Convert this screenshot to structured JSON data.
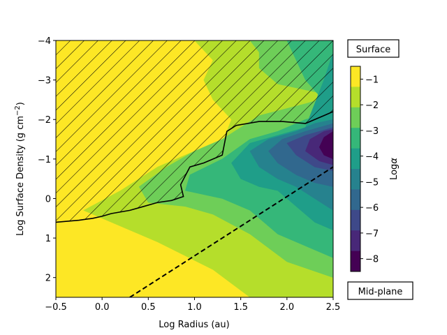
{
  "chart_data": {
    "type": "heatmap",
    "subtype": "filled-contour",
    "title": "",
    "xlabel": "Log Radius (au)",
    "ylabel": "Log Surface Density (g cm",
    "ylabel_exponent": "−2",
    "ylabel_close": ")",
    "xlim": [
      -0.5,
      2.5
    ],
    "ylim": [
      2.5,
      -4
    ],
    "y_axis_inverted": true,
    "x_ticks": [
      "−0.5",
      "0.0",
      "0.5",
      "1.0",
      "1.5",
      "2.0",
      "2.5"
    ],
    "x_tick_values": [
      -0.5,
      0.0,
      0.5,
      1.0,
      1.5,
      2.0,
      2.5
    ],
    "y_ticks": [
      "−4",
      "−3",
      "−2",
      "−1",
      "0",
      "1",
      "2"
    ],
    "y_tick_values": [
      -4,
      -3,
      -2,
      -1,
      0,
      1,
      2
    ],
    "grid": false,
    "colorbar": {
      "label": "Log",
      "label_symbol": "α",
      "ticks": [
        "−1",
        "−2",
        "−3",
        "−4",
        "−5",
        "−6",
        "−7",
        "−8"
      ],
      "tick_values": [
        -1,
        -2,
        -3,
        -4,
        -5,
        -6,
        -7,
        -8
      ],
      "range": [
        -8.5,
        -0.5
      ],
      "level_colors": [
        "#fde725",
        "#b5de2b",
        "#6ece58",
        "#35b779",
        "#1f9e89",
        "#26828e",
        "#31688e",
        "#3e4989",
        "#482878",
        "#440154"
      ]
    },
    "annotations": {
      "top_box": "Surface",
      "bottom_box": "Mid-plane"
    },
    "hatched_region_boundary": [
      [
        -0.5,
        0.6
      ],
      [
        -0.25,
        0.55
      ],
      [
        -0.1,
        0.5
      ],
      [
        0.0,
        0.45
      ],
      [
        0.1,
        0.38
      ],
      [
        0.3,
        0.3
      ],
      [
        0.45,
        0.2
      ],
      [
        0.6,
        0.1
      ],
      [
        0.75,
        0.05
      ],
      [
        0.88,
        -0.05
      ],
      [
        0.85,
        -0.35
      ],
      [
        0.95,
        -0.8
      ],
      [
        1.1,
        -0.9
      ],
      [
        1.3,
        -1.1
      ],
      [
        1.35,
        -1.7
      ],
      [
        1.45,
        -1.85
      ],
      [
        1.7,
        -1.95
      ],
      [
        1.95,
        -1.95
      ],
      [
        2.2,
        -1.9
      ],
      [
        2.4,
        -2.1
      ],
      [
        2.5,
        -2.2
      ]
    ],
    "dashed_line": [
      [
        0.3,
        2.5
      ],
      [
        2.5,
        -0.8
      ]
    ],
    "contour_bands": [
      {
        "level": -1,
        "color": "#fde725",
        "polygon": [
          [
            -0.5,
            -4
          ],
          [
            2.5,
            -4
          ],
          [
            2.5,
            2.5
          ],
          [
            -0.5,
            2.5
          ]
        ]
      },
      {
        "level": -2,
        "color": "#b5de2b",
        "polygon": [
          [
            0.4,
            -4
          ],
          [
            2.5,
            -4
          ],
          [
            2.5,
            2.5
          ],
          [
            1.6,
            2.5
          ],
          [
            1.2,
            1.8
          ],
          [
            0.6,
            1.1
          ],
          [
            0.0,
            0.5
          ],
          [
            -0.2,
            0.3
          ],
          [
            0.2,
            -0.2
          ],
          [
            0.6,
            -0.8
          ],
          [
            1.0,
            -1.2
          ],
          [
            1.3,
            -1.4
          ],
          [
            1.4,
            -2.0
          ],
          [
            1.2,
            -2.5
          ],
          [
            1.1,
            -3.0
          ],
          [
            1.2,
            -3.5
          ],
          [
            1.0,
            -4
          ]
        ]
      },
      {
        "level": -3,
        "color": "#6ece58",
        "polygon": [
          [
            1.3,
            -4
          ],
          [
            2.5,
            -4
          ],
          [
            2.5,
            2.0
          ],
          [
            2.0,
            1.6
          ],
          [
            1.6,
            0.9
          ],
          [
            1.2,
            0.4
          ],
          [
            0.9,
            0.2
          ],
          [
            0.5,
            0.1
          ],
          [
            0.4,
            -0.3
          ],
          [
            0.7,
            -0.8
          ],
          [
            1.0,
            -1.2
          ],
          [
            1.3,
            -1.5
          ],
          [
            1.7,
            -2.1
          ],
          [
            2.2,
            -2.4
          ],
          [
            2.5,
            -2.6
          ],
          [
            1.9,
            -2.9
          ],
          [
            1.7,
            -3.3
          ],
          [
            1.7,
            -3.7
          ],
          [
            1.6,
            -4
          ]
        ]
      },
      {
        "level": -4,
        "color": "#35b779",
        "polygon": [
          [
            2.0,
            -4
          ],
          [
            2.5,
            -4
          ],
          [
            2.5,
            1.5
          ],
          [
            2.2,
            1.2
          ],
          [
            1.9,
            0.9
          ],
          [
            1.6,
            0.3
          ],
          [
            1.3,
            0.0
          ],
          [
            0.9,
            -0.2
          ],
          [
            0.95,
            -0.6
          ],
          [
            1.3,
            -1.0
          ],
          [
            1.6,
            -1.5
          ],
          [
            1.9,
            -1.7
          ],
          [
            2.2,
            -2.0
          ],
          [
            2.5,
            -2.2
          ],
          [
            2.2,
            -3.0
          ],
          [
            2.1,
            -3.5
          ]
        ]
      },
      {
        "level": -5,
        "color": "#1f9e89",
        "polygon": [
          [
            2.5,
            -3.7
          ],
          [
            2.5,
            0.8
          ],
          [
            2.3,
            0.6
          ],
          [
            2.1,
            0.2
          ],
          [
            1.9,
            -0.2
          ],
          [
            1.7,
            -0.3
          ],
          [
            1.5,
            -0.5
          ],
          [
            1.4,
            -0.9
          ],
          [
            1.6,
            -1.4
          ],
          [
            1.9,
            -1.6
          ],
          [
            2.2,
            -1.8
          ],
          [
            2.4,
            -3.0
          ]
        ]
      },
      {
        "level": -6,
        "color": "#26828e",
        "polygon": [
          [
            2.5,
            -2.0
          ],
          [
            2.5,
            0.3
          ],
          [
            2.3,
            0.0
          ],
          [
            2.1,
            -0.3
          ],
          [
            1.9,
            -0.5
          ],
          [
            1.7,
            -0.8
          ],
          [
            1.6,
            -1.2
          ],
          [
            1.8,
            -1.5
          ],
          [
            2.1,
            -1.7
          ],
          [
            2.3,
            -1.9
          ]
        ]
      },
      {
        "level": -7,
        "color": "#31688e",
        "polygon": [
          [
            2.5,
            -1.9
          ],
          [
            2.5,
            -0.3
          ],
          [
            2.3,
            -0.4
          ],
          [
            2.1,
            -0.6
          ],
          [
            1.9,
            -0.9
          ],
          [
            1.8,
            -1.2
          ],
          [
            1.95,
            -1.5
          ],
          [
            2.2,
            -1.7
          ]
        ]
      },
      {
        "level": -8,
        "color": "#3e4989",
        "polygon": [
          [
            2.5,
            -1.8
          ],
          [
            2.5,
            -0.7
          ],
          [
            2.3,
            -0.8
          ],
          [
            2.1,
            -1.1
          ],
          [
            2.0,
            -1.4
          ],
          [
            2.2,
            -1.6
          ]
        ]
      },
      {
        "level": -8.3,
        "color": "#482878",
        "polygon": [
          [
            2.5,
            -1.75
          ],
          [
            2.5,
            -0.85
          ],
          [
            2.35,
            -0.95
          ],
          [
            2.2,
            -1.2
          ],
          [
            2.25,
            -1.5
          ],
          [
            2.4,
            -1.7
          ]
        ]
      },
      {
        "level": -8.5,
        "color": "#440154",
        "polygon": [
          [
            2.5,
            -1.7
          ],
          [
            2.5,
            -1.0
          ],
          [
            2.4,
            -1.1
          ],
          [
            2.35,
            -1.3
          ],
          [
            2.4,
            -1.55
          ]
        ]
      }
    ]
  }
}
